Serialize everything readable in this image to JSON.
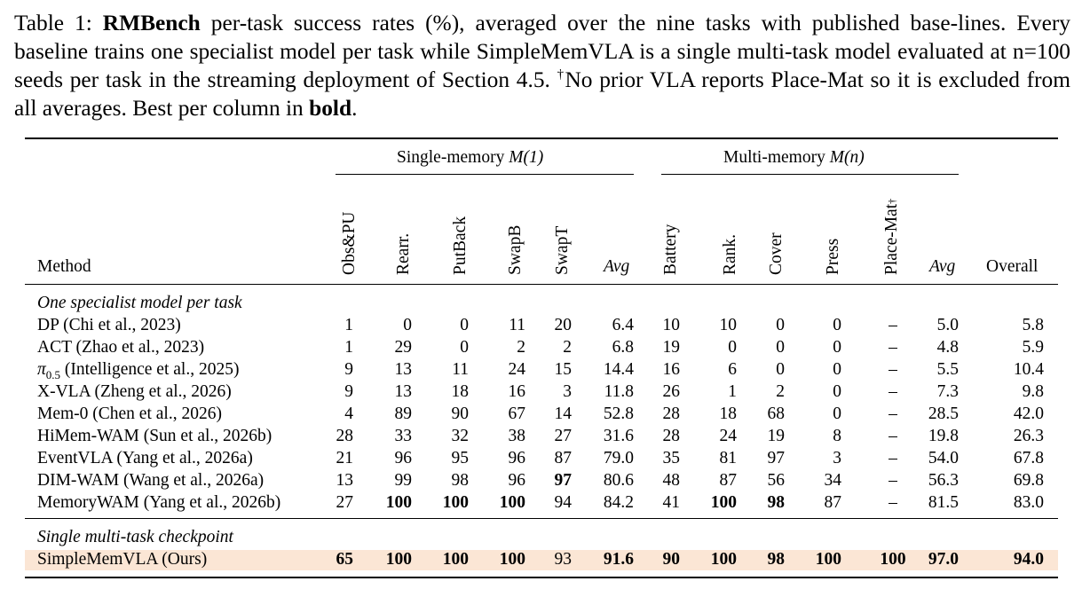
{
  "caption": {
    "label": "Table 1:",
    "name": "RMBench",
    "text1": " per-task success rates (%), averaged over the nine tasks with published base-lines. Every baseline trains one specialist model per task while SimpleMemVLA is a single multi-task model evaluated at n=100 seeds per task in the streaming deployment of Section 4.5. ",
    "dagger": "†",
    "text2": "No prior VLA reports Place-Mat so it is excluded from all averages. Best per column in ",
    "bold_word": "bold",
    "end": "."
  },
  "groups": {
    "single": "Single-memory",
    "single_math": "M(1)",
    "multi": "Multi-memory",
    "multi_math": "M(n)"
  },
  "headers": {
    "method": "Method",
    "overall": "Overall",
    "avg": "Avg",
    "cols": [
      "Obs&PU",
      "Rearr.",
      "PutBack",
      "SwapB",
      "SwapT",
      "Battery",
      "Rank.",
      "Cover",
      "Press",
      "Place-Mat"
    ],
    "dagger": "†"
  },
  "sections": {
    "specialist": "One specialist model per task",
    "multitask": "Single multi-task checkpoint"
  },
  "rows": [
    {
      "method": "DP (Chi et al., 2023)",
      "vals": [
        "1",
        "0",
        "0",
        "11",
        "20",
        "6.4",
        "10",
        "10",
        "0",
        "0",
        "–",
        "5.0",
        "5.8"
      ]
    },
    {
      "method": "ACT (Zhao et al., 2023)",
      "vals": [
        "1",
        "29",
        "0",
        "2",
        "2",
        "6.8",
        "19",
        "0",
        "0",
        "0",
        "–",
        "4.8",
        "5.9"
      ]
    },
    {
      "method_pre": "π",
      "method_sub": "0.5",
      "method": " (Intelligence et al., 2025)",
      "vals": [
        "9",
        "13",
        "11",
        "24",
        "15",
        "14.4",
        "16",
        "6",
        "0",
        "0",
        "–",
        "5.5",
        "10.4"
      ]
    },
    {
      "method": "X-VLA (Zheng et al., 2026)",
      "vals": [
        "9",
        "13",
        "18",
        "16",
        "3",
        "11.8",
        "26",
        "1",
        "2",
        "0",
        "–",
        "7.3",
        "9.8"
      ]
    },
    {
      "method": "Mem-0 (Chen et al., 2026)",
      "vals": [
        "4",
        "89",
        "90",
        "67",
        "14",
        "52.8",
        "28",
        "18",
        "68",
        "0",
        "–",
        "28.5",
        "42.0"
      ]
    },
    {
      "method": "HiMem-WAM (Sun et al., 2026b)",
      "vals": [
        "28",
        "33",
        "32",
        "38",
        "27",
        "31.6",
        "28",
        "24",
        "19",
        "8",
        "–",
        "19.8",
        "26.3"
      ]
    },
    {
      "method": "EventVLA (Yang et al., 2026a)",
      "vals": [
        "21",
        "96",
        "95",
        "96",
        "87",
        "79.0",
        "35",
        "81",
        "97",
        "3",
        "–",
        "54.0",
        "67.8"
      ]
    },
    {
      "method": "DIM-WAM (Wang et al., 2026a)",
      "vals": [
        "13",
        "99",
        "98",
        "96",
        "97",
        "80.6",
        "48",
        "87",
        "56",
        "34",
        "–",
        "56.3",
        "69.8"
      ]
    },
    {
      "method": "MemoryWAM (Yang et al., 2026b)",
      "vals": [
        "27",
        "100",
        "100",
        "100",
        "94",
        "84.2",
        "41",
        "100",
        "98",
        "87",
        "–",
        "81.5",
        "83.0"
      ]
    }
  ],
  "ours": {
    "method": "SimpleMemVLA (Ours)",
    "vals": [
      "65",
      "100",
      "100",
      "100",
      "93",
      "91.6",
      "90",
      "100",
      "98",
      "100",
      "100",
      "97.0",
      "94.0"
    ]
  },
  "colors": {
    "highlight": "#fbe6d5"
  }
}
